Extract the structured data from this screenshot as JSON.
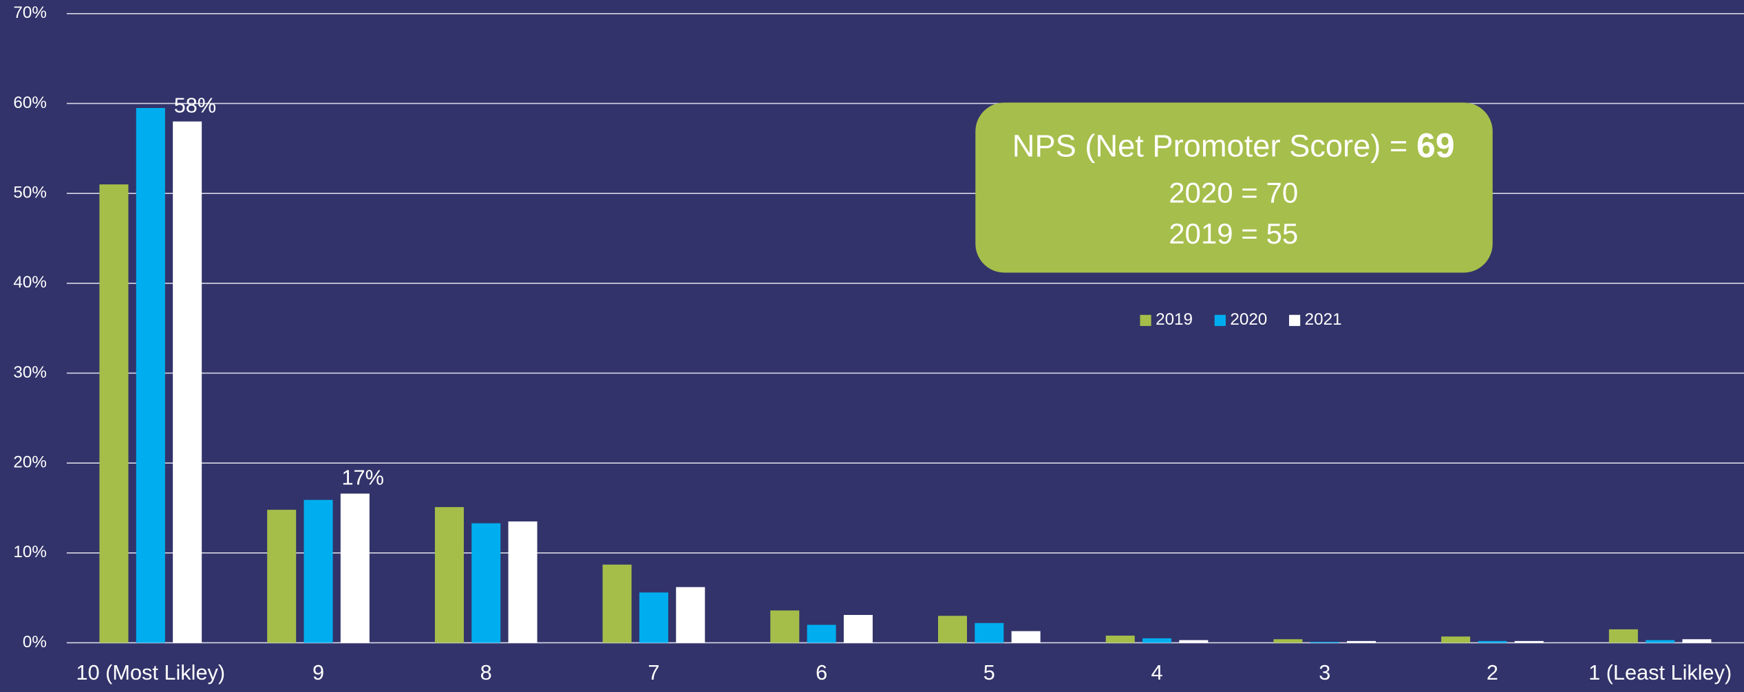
{
  "chart_data": {
    "type": "bar",
    "categories": [
      "10 (Most Likley)",
      "9",
      "8",
      "7",
      "6",
      "5",
      "4",
      "3",
      "2",
      "1 (Least Likley)"
    ],
    "series": [
      {
        "name": "2019",
        "color": "#a5be4a",
        "values": [
          51,
          14.8,
          15.1,
          8.7,
          3.6,
          3.0,
          0.8,
          0.4,
          0.7,
          1.5
        ]
      },
      {
        "name": "2020",
        "color": "#00aeef",
        "values": [
          59.5,
          15.9,
          13.3,
          5.6,
          2.0,
          2.2,
          0.5,
          0.1,
          0.2,
          0.3
        ]
      },
      {
        "name": "2021",
        "color": "#ffffff",
        "values": [
          58,
          16.6,
          13.5,
          6.2,
          3.1,
          1.3,
          0.3,
          0.2,
          0.2,
          0.4
        ],
        "value_labels": [
          "58%",
          "17%",
          null,
          null,
          null,
          null,
          null,
          null,
          null,
          null
        ]
      }
    ],
    "ylim": [
      0,
      70
    ],
    "yticks": [
      {
        "value": 0,
        "label": "0%"
      },
      {
        "value": 10,
        "label": "10%"
      },
      {
        "value": 20,
        "label": "20%"
      },
      {
        "value": 30,
        "label": "30%"
      },
      {
        "value": 40,
        "label": "40%"
      },
      {
        "value": 50,
        "label": "50%"
      },
      {
        "value": 60,
        "label": "60%"
      },
      {
        "value": 70,
        "label": "70%"
      }
    ],
    "grid": true,
    "legend": "top",
    "annotation": {
      "line1": "NPS (Net Promoter Score) =",
      "score": "69",
      "line2": "2020 = 70",
      "line3": "2019 = 55",
      "color": "#a6be4b"
    }
  }
}
